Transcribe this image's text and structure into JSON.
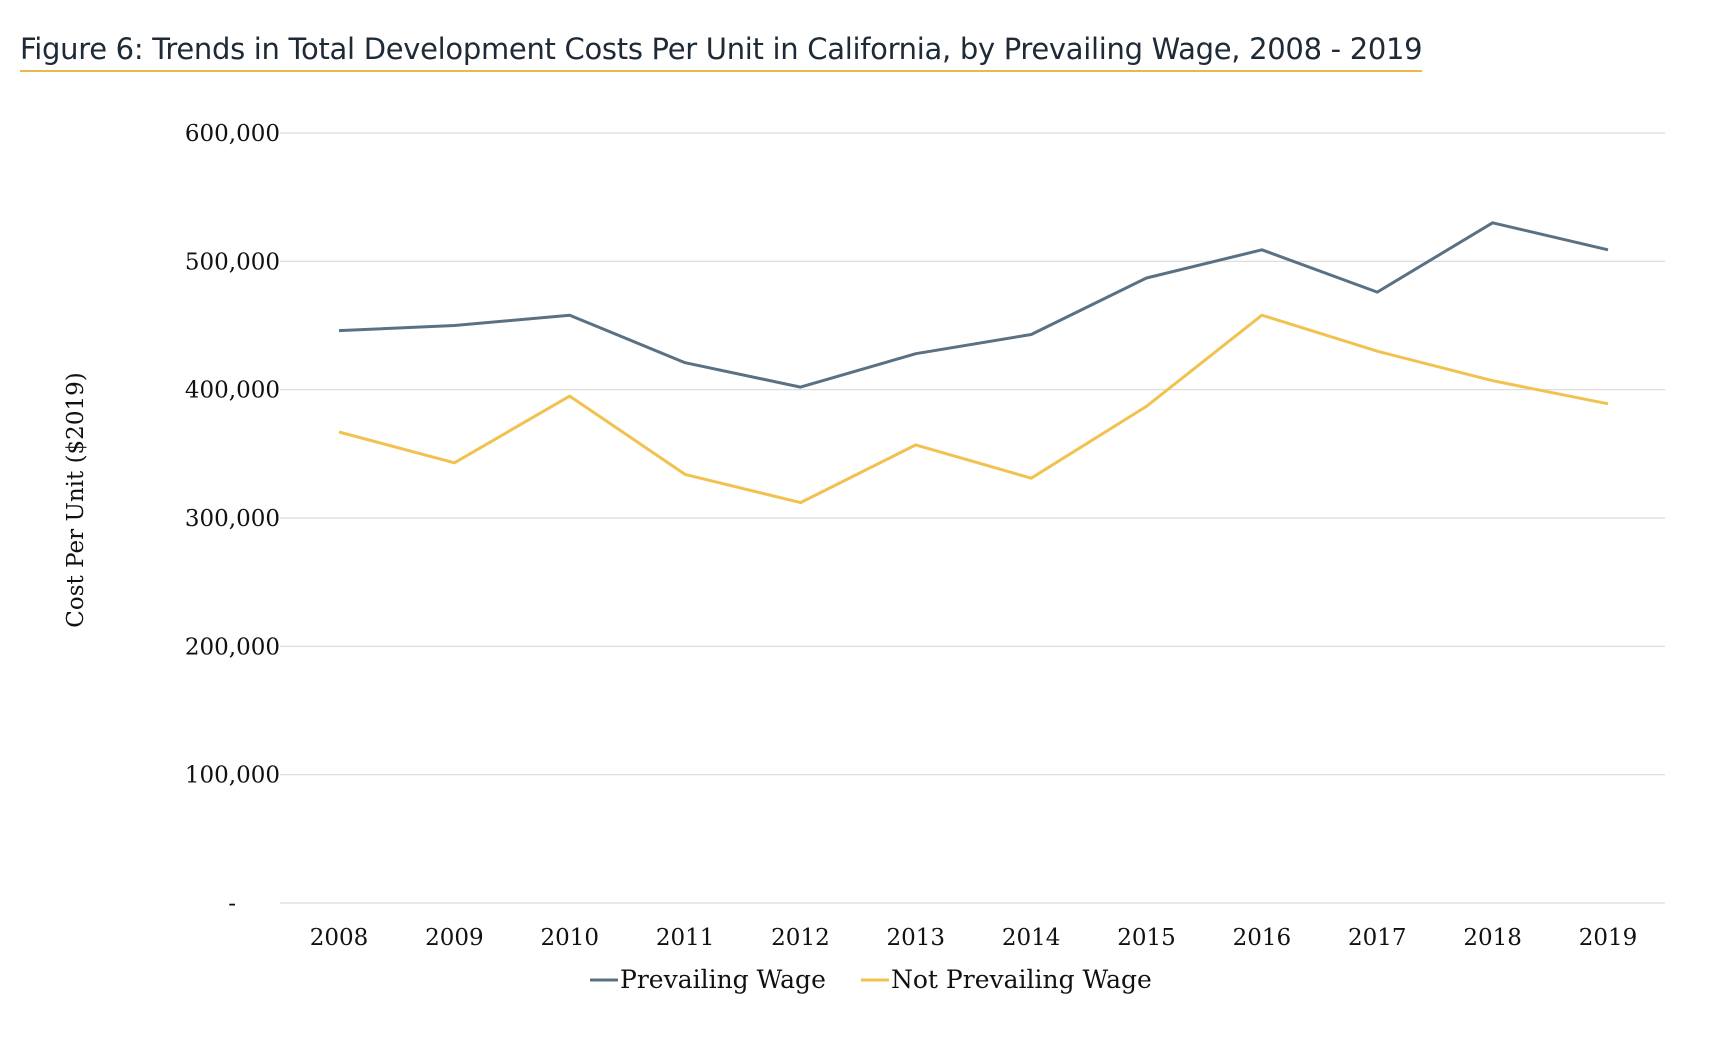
{
  "title": "Figure 6: Trends in Total Development Costs Per Unit in California, by Prevailing Wage, 2008 - 2019",
  "chart_data": {
    "type": "line",
    "title": "Figure 6: Trends in Total Development Costs Per Unit in California, by Prevailing Wage, 2008 - 2019",
    "xlabel": "",
    "ylabel": "Cost Per Unit ($2019)",
    "categories": [
      "2008",
      "2009",
      "2010",
      "2011",
      "2012",
      "2013",
      "2014",
      "2015",
      "2016",
      "2017",
      "2018",
      "2019"
    ],
    "ylim": [
      0,
      600000
    ],
    "yticks": [
      0,
      100000,
      200000,
      300000,
      400000,
      500000,
      600000
    ],
    "ytick_labels": [
      "-",
      "100,000",
      "200,000",
      "300,000",
      "400,000",
      "500,000",
      "600,000"
    ],
    "grid": true,
    "legend_position": "bottom",
    "series": [
      {
        "name": "Prevailing Wage",
        "color": "#5a7184",
        "values": [
          446000,
          450000,
          458000,
          421000,
          402000,
          428000,
          443000,
          487000,
          509000,
          476000,
          530000,
          509000
        ]
      },
      {
        "name": "Not Prevailing Wage",
        "color": "#f1c24f",
        "values": [
          367000,
          343000,
          395000,
          334000,
          312000,
          357000,
          331000,
          387000,
          458000,
          430000,
          407000,
          389000
        ]
      }
    ]
  }
}
